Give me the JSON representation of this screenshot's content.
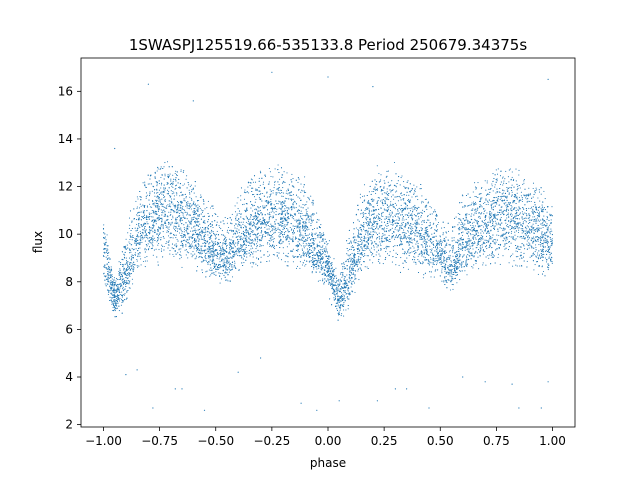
{
  "chart_data": {
    "type": "scatter",
    "title": "1SWASPJ125519.66-535133.8 Period 250679.34375s",
    "xlabel": "phase",
    "ylabel": "flux",
    "xlim": [
      -1.1,
      1.1
    ],
    "ylim": [
      1.9,
      17.4
    ],
    "x_ticks": [
      -1.0,
      -0.75,
      -0.5,
      -0.25,
      0.0,
      0.25,
      0.5,
      0.75,
      1.0
    ],
    "x_tick_labels": [
      "−1.00",
      "−0.75",
      "−0.50",
      "−0.25",
      "0.00",
      "0.25",
      "0.50",
      "0.75",
      "1.00"
    ],
    "y_ticks": [
      2,
      4,
      6,
      8,
      10,
      12,
      14,
      16
    ],
    "y_tick_labels": [
      "2",
      "4",
      "6",
      "8",
      "10",
      "12",
      "14",
      "16"
    ],
    "grid": false,
    "marker_color": "#1f77b4",
    "series": [
      {
        "phase_profile": {
          "x": [
            -1.0,
            -0.95,
            -0.9,
            -0.85,
            -0.8,
            -0.7,
            -0.6,
            -0.5,
            -0.45,
            -0.4,
            -0.3,
            -0.2,
            -0.1,
            -0.05,
            0.0,
            0.05,
            0.1,
            0.15,
            0.2,
            0.3,
            0.4,
            0.5,
            0.55,
            0.6,
            0.7,
            0.8,
            0.9,
            1.0
          ],
          "median_flux": [
            9.4,
            7.4,
            8.2,
            9.8,
            10.6,
            10.9,
            10.4,
            9.2,
            8.9,
            9.8,
            10.6,
            10.8,
            10.2,
            9.2,
            8.6,
            7.2,
            8.4,
            9.8,
            10.5,
            10.7,
            10.2,
            9.2,
            8.6,
            9.6,
            10.4,
            10.8,
            10.4,
            9.6
          ],
          "spread_upper": [
            10.8,
            8.2,
            10.0,
            12.0,
            12.8,
            13.2,
            12.6,
            11.0,
            10.6,
            12.0,
            12.8,
            13.0,
            12.4,
            11.2,
            9.8,
            8.2,
            10.4,
            12.2,
            12.8,
            13.0,
            12.4,
            11.0,
            10.4,
            11.8,
            12.6,
            13.0,
            12.4,
            11.6
          ],
          "spread_lower": [
            8.0,
            6.4,
            6.8,
            8.4,
            8.6,
            8.6,
            8.4,
            8.0,
            7.8,
            8.4,
            8.6,
            8.6,
            8.4,
            8.2,
            7.6,
            6.4,
            7.0,
            8.4,
            8.6,
            8.6,
            8.4,
            8.0,
            7.6,
            8.2,
            8.6,
            8.6,
            8.4,
            8.0
          ]
        },
        "points": [
          [
            -0.9,
            4.1
          ],
          [
            -0.85,
            4.3
          ],
          [
            -0.78,
            2.7
          ],
          [
            -0.68,
            3.5
          ],
          [
            -0.65,
            3.5
          ],
          [
            -0.55,
            2.6
          ],
          [
            -0.4,
            4.2
          ],
          [
            -0.3,
            4.8
          ],
          [
            -0.12,
            2.9
          ],
          [
            -0.05,
            2.6
          ],
          [
            0.05,
            3.0
          ],
          [
            0.22,
            3.0
          ],
          [
            0.3,
            3.5
          ],
          [
            0.35,
            3.5
          ],
          [
            0.45,
            2.7
          ],
          [
            0.6,
            4.0
          ],
          [
            0.7,
            3.8
          ],
          [
            0.82,
            3.7
          ],
          [
            0.85,
            2.7
          ],
          [
            0.95,
            2.7
          ],
          [
            0.98,
            3.8
          ],
          [
            0.0,
            16.6
          ],
          [
            0.98,
            16.5
          ],
          [
            -0.6,
            15.6
          ],
          [
            -0.8,
            16.3
          ],
          [
            -0.95,
            13.6
          ],
          [
            0.2,
            16.2
          ],
          [
            -0.25,
            16.8
          ]
        ]
      }
    ]
  }
}
